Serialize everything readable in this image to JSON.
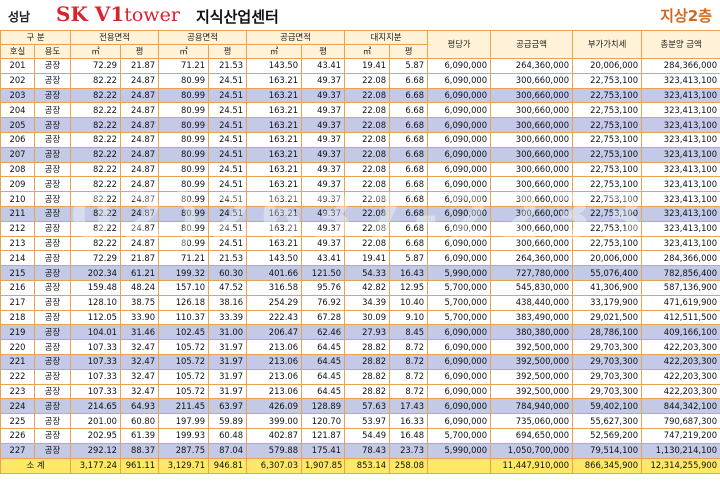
{
  "header": {
    "region": "성남",
    "brand_sk": "SK ",
    "brand_v1": "V1",
    "brand_tower": "tower",
    "center_name": "지식산업센터",
    "floor_label": "지상2층"
  },
  "columns": {
    "group": "구  분",
    "unit": "호실",
    "use": "용도",
    "excl_area": "전용면적",
    "common_area": "공용면적",
    "supply_area": "공급면적",
    "land_share": "대지지분",
    "m2": "㎡",
    "pyeong": "평",
    "price_per_pyeong": "평당가",
    "supply_amount": "공급금액",
    "vat": "부가가치세",
    "total_price": "총분양 금액"
  },
  "rows": [
    {
      "unit": "201",
      "use": "공장",
      "ea_m2": "72.29",
      "ea_py": "21.87",
      "ca_m2": "71.21",
      "ca_py": "21.53",
      "sa_m2": "143.50",
      "sa_py": "43.41",
      "ls_m2": "19.41",
      "ls_py": "5.87",
      "ppp": "6,090,000",
      "supply": "264,360,000",
      "vat": "20,006,000",
      "total": "284,366,000",
      "shade": "w"
    },
    {
      "unit": "202",
      "use": "공장",
      "ea_m2": "82.22",
      "ea_py": "24.87",
      "ca_m2": "80.99",
      "ca_py": "24.51",
      "sa_m2": "163.21",
      "sa_py": "49.37",
      "ls_m2": "22.08",
      "ls_py": "6.68",
      "ppp": "6,090,000",
      "supply": "300,660,000",
      "vat": "22,753,100",
      "total": "323,413,100",
      "shade": "w"
    },
    {
      "unit": "203",
      "use": "공장",
      "ea_m2": "82.22",
      "ea_py": "24.87",
      "ca_m2": "80.99",
      "ca_py": "24.51",
      "sa_m2": "163.21",
      "sa_py": "49.37",
      "ls_m2": "22.08",
      "ls_py": "6.68",
      "ppp": "6,090,000",
      "supply": "300,660,000",
      "vat": "22,753,100",
      "total": "323,413,100",
      "shade": "b"
    },
    {
      "unit": "204",
      "use": "공장",
      "ea_m2": "82.22",
      "ea_py": "24.87",
      "ca_m2": "80.99",
      "ca_py": "24.51",
      "sa_m2": "163.21",
      "sa_py": "49.37",
      "ls_m2": "22.08",
      "ls_py": "6.68",
      "ppp": "6,090,000",
      "supply": "300,660,000",
      "vat": "22,753,100",
      "total": "323,413,100",
      "shade": "w"
    },
    {
      "unit": "205",
      "use": "공장",
      "ea_m2": "82.22",
      "ea_py": "24.87",
      "ca_m2": "80.99",
      "ca_py": "24.51",
      "sa_m2": "163.21",
      "sa_py": "49.37",
      "ls_m2": "22.08",
      "ls_py": "6.68",
      "ppp": "6,090,000",
      "supply": "300,660,000",
      "vat": "22,753,100",
      "total": "323,413,100",
      "shade": "b"
    },
    {
      "unit": "206",
      "use": "공장",
      "ea_m2": "82.22",
      "ea_py": "24.87",
      "ca_m2": "80.99",
      "ca_py": "24.51",
      "sa_m2": "163.21",
      "sa_py": "49.37",
      "ls_m2": "22.08",
      "ls_py": "6.68",
      "ppp": "6,090,000",
      "supply": "300,660,000",
      "vat": "22,753,100",
      "total": "323,413,100",
      "shade": "w"
    },
    {
      "unit": "207",
      "use": "공장",
      "ea_m2": "82.22",
      "ea_py": "24.87",
      "ca_m2": "80.99",
      "ca_py": "24.51",
      "sa_m2": "163.21",
      "sa_py": "49.37",
      "ls_m2": "22.08",
      "ls_py": "6.68",
      "ppp": "6,090,000",
      "supply": "300,660,000",
      "vat": "22,753,100",
      "total": "323,413,100",
      "shade": "b"
    },
    {
      "unit": "208",
      "use": "공장",
      "ea_m2": "82.22",
      "ea_py": "24.87",
      "ca_m2": "80.99",
      "ca_py": "24.51",
      "sa_m2": "163.21",
      "sa_py": "49.37",
      "ls_m2": "22.08",
      "ls_py": "6.68",
      "ppp": "6,090,000",
      "supply": "300,660,000",
      "vat": "22,753,100",
      "total": "323,413,100",
      "shade": "w"
    },
    {
      "unit": "209",
      "use": "공장",
      "ea_m2": "82.22",
      "ea_py": "24.87",
      "ca_m2": "80.99",
      "ca_py": "24.51",
      "sa_m2": "163.21",
      "sa_py": "49.37",
      "ls_m2": "22.08",
      "ls_py": "6.68",
      "ppp": "6,090,000",
      "supply": "300,660,000",
      "vat": "22,753,100",
      "total": "323,413,100",
      "shade": "w"
    },
    {
      "unit": "210",
      "use": "공장",
      "ea_m2": "82.22",
      "ea_py": "24.87",
      "ca_m2": "80.99",
      "ca_py": "24.51",
      "sa_m2": "163.21",
      "sa_py": "49.37",
      "ls_m2": "22.08",
      "ls_py": "6.68",
      "ppp": "6,090,000",
      "supply": "300,660,000",
      "vat": "22,753,100",
      "total": "323,413,100",
      "shade": "w"
    },
    {
      "unit": "211",
      "use": "공장",
      "ea_m2": "82.22",
      "ea_py": "24.87",
      "ca_m2": "80.99",
      "ca_py": "24.51",
      "sa_m2": "163.21",
      "sa_py": "49.37",
      "ls_m2": "22.08",
      "ls_py": "6.68",
      "ppp": "6,090,000",
      "supply": "300,660,000",
      "vat": "22,753,100",
      "total": "323,413,100",
      "shade": "b"
    },
    {
      "unit": "212",
      "use": "공장",
      "ea_m2": "82.22",
      "ea_py": "24.87",
      "ca_m2": "80.99",
      "ca_py": "24.51",
      "sa_m2": "163.21",
      "sa_py": "49.37",
      "ls_m2": "22.08",
      "ls_py": "6.68",
      "ppp": "6,090,000",
      "supply": "300,660,000",
      "vat": "22,753,100",
      "total": "323,413,100",
      "shade": "w"
    },
    {
      "unit": "213",
      "use": "공장",
      "ea_m2": "82.22",
      "ea_py": "24.87",
      "ca_m2": "80.99",
      "ca_py": "24.51",
      "sa_m2": "163.21",
      "sa_py": "49.37",
      "ls_m2": "22.08",
      "ls_py": "6.68",
      "ppp": "6,090,000",
      "supply": "300,660,000",
      "vat": "22,753,100",
      "total": "323,413,100",
      "shade": "w"
    },
    {
      "unit": "214",
      "use": "공장",
      "ea_m2": "72.29",
      "ea_py": "21.87",
      "ca_m2": "71.21",
      "ca_py": "21.53",
      "sa_m2": "143.50",
      "sa_py": "43.41",
      "ls_m2": "19.41",
      "ls_py": "5.87",
      "ppp": "6,090,000",
      "supply": "264,360,000",
      "vat": "20,006,000",
      "total": "284,366,000",
      "shade": "w"
    },
    {
      "unit": "215",
      "use": "공장",
      "ea_m2": "202.34",
      "ea_py": "61.21",
      "ca_m2": "199.32",
      "ca_py": "60.30",
      "sa_m2": "401.66",
      "sa_py": "121.50",
      "ls_m2": "54.33",
      "ls_py": "16.43",
      "ppp": "5,990,000",
      "supply": "727,780,000",
      "vat": "55,076,400",
      "total": "782,856,400",
      "shade": "b"
    },
    {
      "unit": "216",
      "use": "공장",
      "ea_m2": "159.48",
      "ea_py": "48.24",
      "ca_m2": "157.10",
      "ca_py": "47.52",
      "sa_m2": "316.58",
      "sa_py": "95.76",
      "ls_m2": "42.82",
      "ls_py": "12.95",
      "ppp": "5,700,000",
      "supply": "545,830,000",
      "vat": "41,306,900",
      "total": "587,136,900",
      "shade": "w"
    },
    {
      "unit": "217",
      "use": "공장",
      "ea_m2": "128.10",
      "ea_py": "38.75",
      "ca_m2": "126.18",
      "ca_py": "38.16",
      "sa_m2": "254.29",
      "sa_py": "76.92",
      "ls_m2": "34.39",
      "ls_py": "10.40",
      "ppp": "5,700,000",
      "supply": "438,440,000",
      "vat": "33,179,900",
      "total": "471,619,900",
      "shade": "w"
    },
    {
      "unit": "218",
      "use": "공장",
      "ea_m2": "112.05",
      "ea_py": "33.90",
      "ca_m2": "110.37",
      "ca_py": "33.39",
      "sa_m2": "222.43",
      "sa_py": "67.28",
      "ls_m2": "30.09",
      "ls_py": "9.10",
      "ppp": "5,700,000",
      "supply": "383,490,000",
      "vat": "29,021,500",
      "total": "412,511,500",
      "shade": "w"
    },
    {
      "unit": "219",
      "use": "공장",
      "ea_m2": "104.01",
      "ea_py": "31.46",
      "ca_m2": "102.45",
      "ca_py": "31.00",
      "sa_m2": "206.47",
      "sa_py": "62.46",
      "ls_m2": "27.93",
      "ls_py": "8.45",
      "ppp": "6,090,000",
      "supply": "380,380,000",
      "vat": "28,786,100",
      "total": "409,166,100",
      "shade": "b"
    },
    {
      "unit": "220",
      "use": "공장",
      "ea_m2": "107.33",
      "ea_py": "32.47",
      "ca_m2": "105.72",
      "ca_py": "31.97",
      "sa_m2": "213.06",
      "sa_py": "64.45",
      "ls_m2": "28.82",
      "ls_py": "8.72",
      "ppp": "6,090,000",
      "supply": "392,500,000",
      "vat": "29,703,300",
      "total": "422,203,300",
      "shade": "w"
    },
    {
      "unit": "221",
      "use": "공장",
      "ea_m2": "107.33",
      "ea_py": "32.47",
      "ca_m2": "105.72",
      "ca_py": "31.97",
      "sa_m2": "213.06",
      "sa_py": "64.45",
      "ls_m2": "28.82",
      "ls_py": "8.72",
      "ppp": "6,090,000",
      "supply": "392,500,000",
      "vat": "29,703,300",
      "total": "422,203,300",
      "shade": "b"
    },
    {
      "unit": "222",
      "use": "공장",
      "ea_m2": "107.33",
      "ea_py": "32.47",
      "ca_m2": "105.72",
      "ca_py": "31.97",
      "sa_m2": "213.06",
      "sa_py": "64.45",
      "ls_m2": "28.82",
      "ls_py": "8.72",
      "ppp": "6,090,000",
      "supply": "392,500,000",
      "vat": "29,703,300",
      "total": "422,203,300",
      "shade": "w"
    },
    {
      "unit": "223",
      "use": "공장",
      "ea_m2": "107.33",
      "ea_py": "32.47",
      "ca_m2": "105.72",
      "ca_py": "31.97",
      "sa_m2": "213.06",
      "sa_py": "64.45",
      "ls_m2": "28.82",
      "ls_py": "8.72",
      "ppp": "6,090,000",
      "supply": "392,500,000",
      "vat": "29,703,300",
      "total": "422,203,300",
      "shade": "w"
    },
    {
      "unit": "224",
      "use": "공장",
      "ea_m2": "214.65",
      "ea_py": "64.93",
      "ca_m2": "211.45",
      "ca_py": "63.97",
      "sa_m2": "426.09",
      "sa_py": "128.89",
      "ls_m2": "57.63",
      "ls_py": "17.43",
      "ppp": "6,090,000",
      "supply": "784,940,000",
      "vat": "59,402,100",
      "total": "844,342,100",
      "shade": "b"
    },
    {
      "unit": "225",
      "use": "공장",
      "ea_m2": "201.00",
      "ea_py": "60.80",
      "ca_m2": "197.99",
      "ca_py": "59.89",
      "sa_m2": "399.00",
      "sa_py": "120.70",
      "ls_m2": "53.97",
      "ls_py": "16.33",
      "ppp": "6,090,000",
      "supply": "735,060,000",
      "vat": "55,627,300",
      "total": "790,687,300",
      "shade": "w"
    },
    {
      "unit": "226",
      "use": "공장",
      "ea_m2": "202.95",
      "ea_py": "61.39",
      "ca_m2": "199.93",
      "ca_py": "60.48",
      "sa_m2": "402.87",
      "sa_py": "121.87",
      "ls_m2": "54.49",
      "ls_py": "16.48",
      "ppp": "5,700,000",
      "supply": "694,650,000",
      "vat": "52,569,200",
      "total": "747,219,200",
      "shade": "w"
    },
    {
      "unit": "227",
      "use": "공장",
      "ea_m2": "292.12",
      "ea_py": "88.37",
      "ca_m2": "287.75",
      "ca_py": "87.04",
      "sa_m2": "579.88",
      "sa_py": "175.41",
      "ls_m2": "78.43",
      "ls_py": "23.73",
      "ppp": "5,990,000",
      "supply": "1,050,700,000",
      "vat": "79,514,100",
      "total": "1,130,214,100",
      "shade": "b"
    }
  ],
  "total_row": {
    "label": "소   계",
    "ea_m2": "3,177.24",
    "ea_py": "961.11",
    "ca_m2": "3,129.71",
    "ca_py": "946.81",
    "sa_m2": "6,307.03",
    "sa_py": "1,907.85",
    "ls_m2": "853.14",
    "ls_py": "258.08",
    "ppp": "",
    "supply": "11,447,910,000",
    "vat": "866,345,900",
    "total": "12,314,255,900"
  },
  "watermark": "02)2637-2233"
}
